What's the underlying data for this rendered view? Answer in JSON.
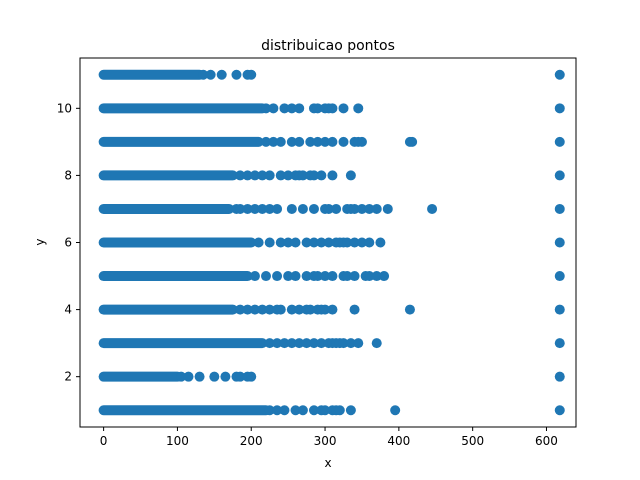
{
  "chart_data": {
    "type": "scatter",
    "title": "distribuicao pontos",
    "xlabel": "x",
    "ylabel": "y",
    "xlim": [
      -32,
      640
    ],
    "ylim": [
      0.5,
      11.5
    ],
    "xticks": [
      0,
      100,
      200,
      300,
      400,
      500,
      600
    ],
    "yticks": [
      2,
      4,
      6,
      8,
      10
    ],
    "grid": false,
    "legend": "none",
    "colors": {
      "marker": "#1f77b4",
      "frame": "#000000"
    },
    "series": [
      {
        "points": [
          {
            "y": 11,
            "dense_from": 0,
            "dense_to": 130,
            "x": [
              135,
              145,
              160,
              180,
              195,
              200,
              618
            ]
          },
          {
            "y": 10,
            "dense_from": 0,
            "dense_to": 215,
            "x": [
              220,
              230,
              245,
              255,
              265,
              285,
              290,
              300,
              305,
              310,
              325,
              345,
              618
            ]
          },
          {
            "y": 9,
            "dense_from": 0,
            "dense_to": 210,
            "x": [
              220,
              230,
              240,
              255,
              265,
              280,
              290,
              300,
              310,
              325,
              340,
              345,
              350,
              415,
              418,
              618
            ]
          },
          {
            "y": 8,
            "dense_from": 0,
            "dense_to": 175,
            "x": [
              185,
              195,
              205,
              215,
              225,
              240,
              250,
              260,
              265,
              270,
              280,
              285,
              295,
              310,
              335,
              618
            ]
          },
          {
            "y": 7,
            "dense_from": 0,
            "dense_to": 170,
            "x": [
              180,
              185,
              195,
              205,
              215,
              225,
              235,
              255,
              270,
              285,
              300,
              305,
              315,
              330,
              335,
              340,
              350,
              360,
              370,
              385,
              445,
              618
            ]
          },
          {
            "y": 6,
            "dense_from": 0,
            "dense_to": 200,
            "x": [
              210,
              225,
              240,
              250,
              260,
              275,
              285,
              295,
              305,
              315,
              320,
              325,
              330,
              340,
              350,
              360,
              375,
              618
            ]
          },
          {
            "y": 5,
            "dense_from": 0,
            "dense_to": 195,
            "x": [
              205,
              220,
              235,
              250,
              260,
              275,
              285,
              290,
              300,
              310,
              325,
              330,
              340,
              355,
              360,
              370,
              380,
              618
            ]
          },
          {
            "y": 4,
            "dense_from": 0,
            "dense_to": 175,
            "x": [
              185,
              195,
              205,
              215,
              225,
              235,
              240,
              255,
              265,
              275,
              280,
              290,
              295,
              300,
              310,
              340,
              415,
              618
            ]
          },
          {
            "y": 3,
            "dense_from": 0,
            "dense_to": 215,
            "x": [
              225,
              235,
              245,
              255,
              265,
              275,
              285,
              295,
              305,
              310,
              315,
              320,
              325,
              335,
              345,
              370,
              618
            ]
          },
          {
            "y": 2,
            "dense_from": 0,
            "dense_to": 100,
            "x": [
              105,
              115,
              130,
              150,
              165,
              180,
              185,
              195,
              200,
              618
            ]
          },
          {
            "y": 1,
            "dense_from": 0,
            "dense_to": 220,
            "x": [
              225,
              235,
              245,
              260,
              270,
              285,
              295,
              300,
              310,
              315,
              320,
              335,
              395,
              618
            ]
          }
        ]
      }
    ]
  }
}
